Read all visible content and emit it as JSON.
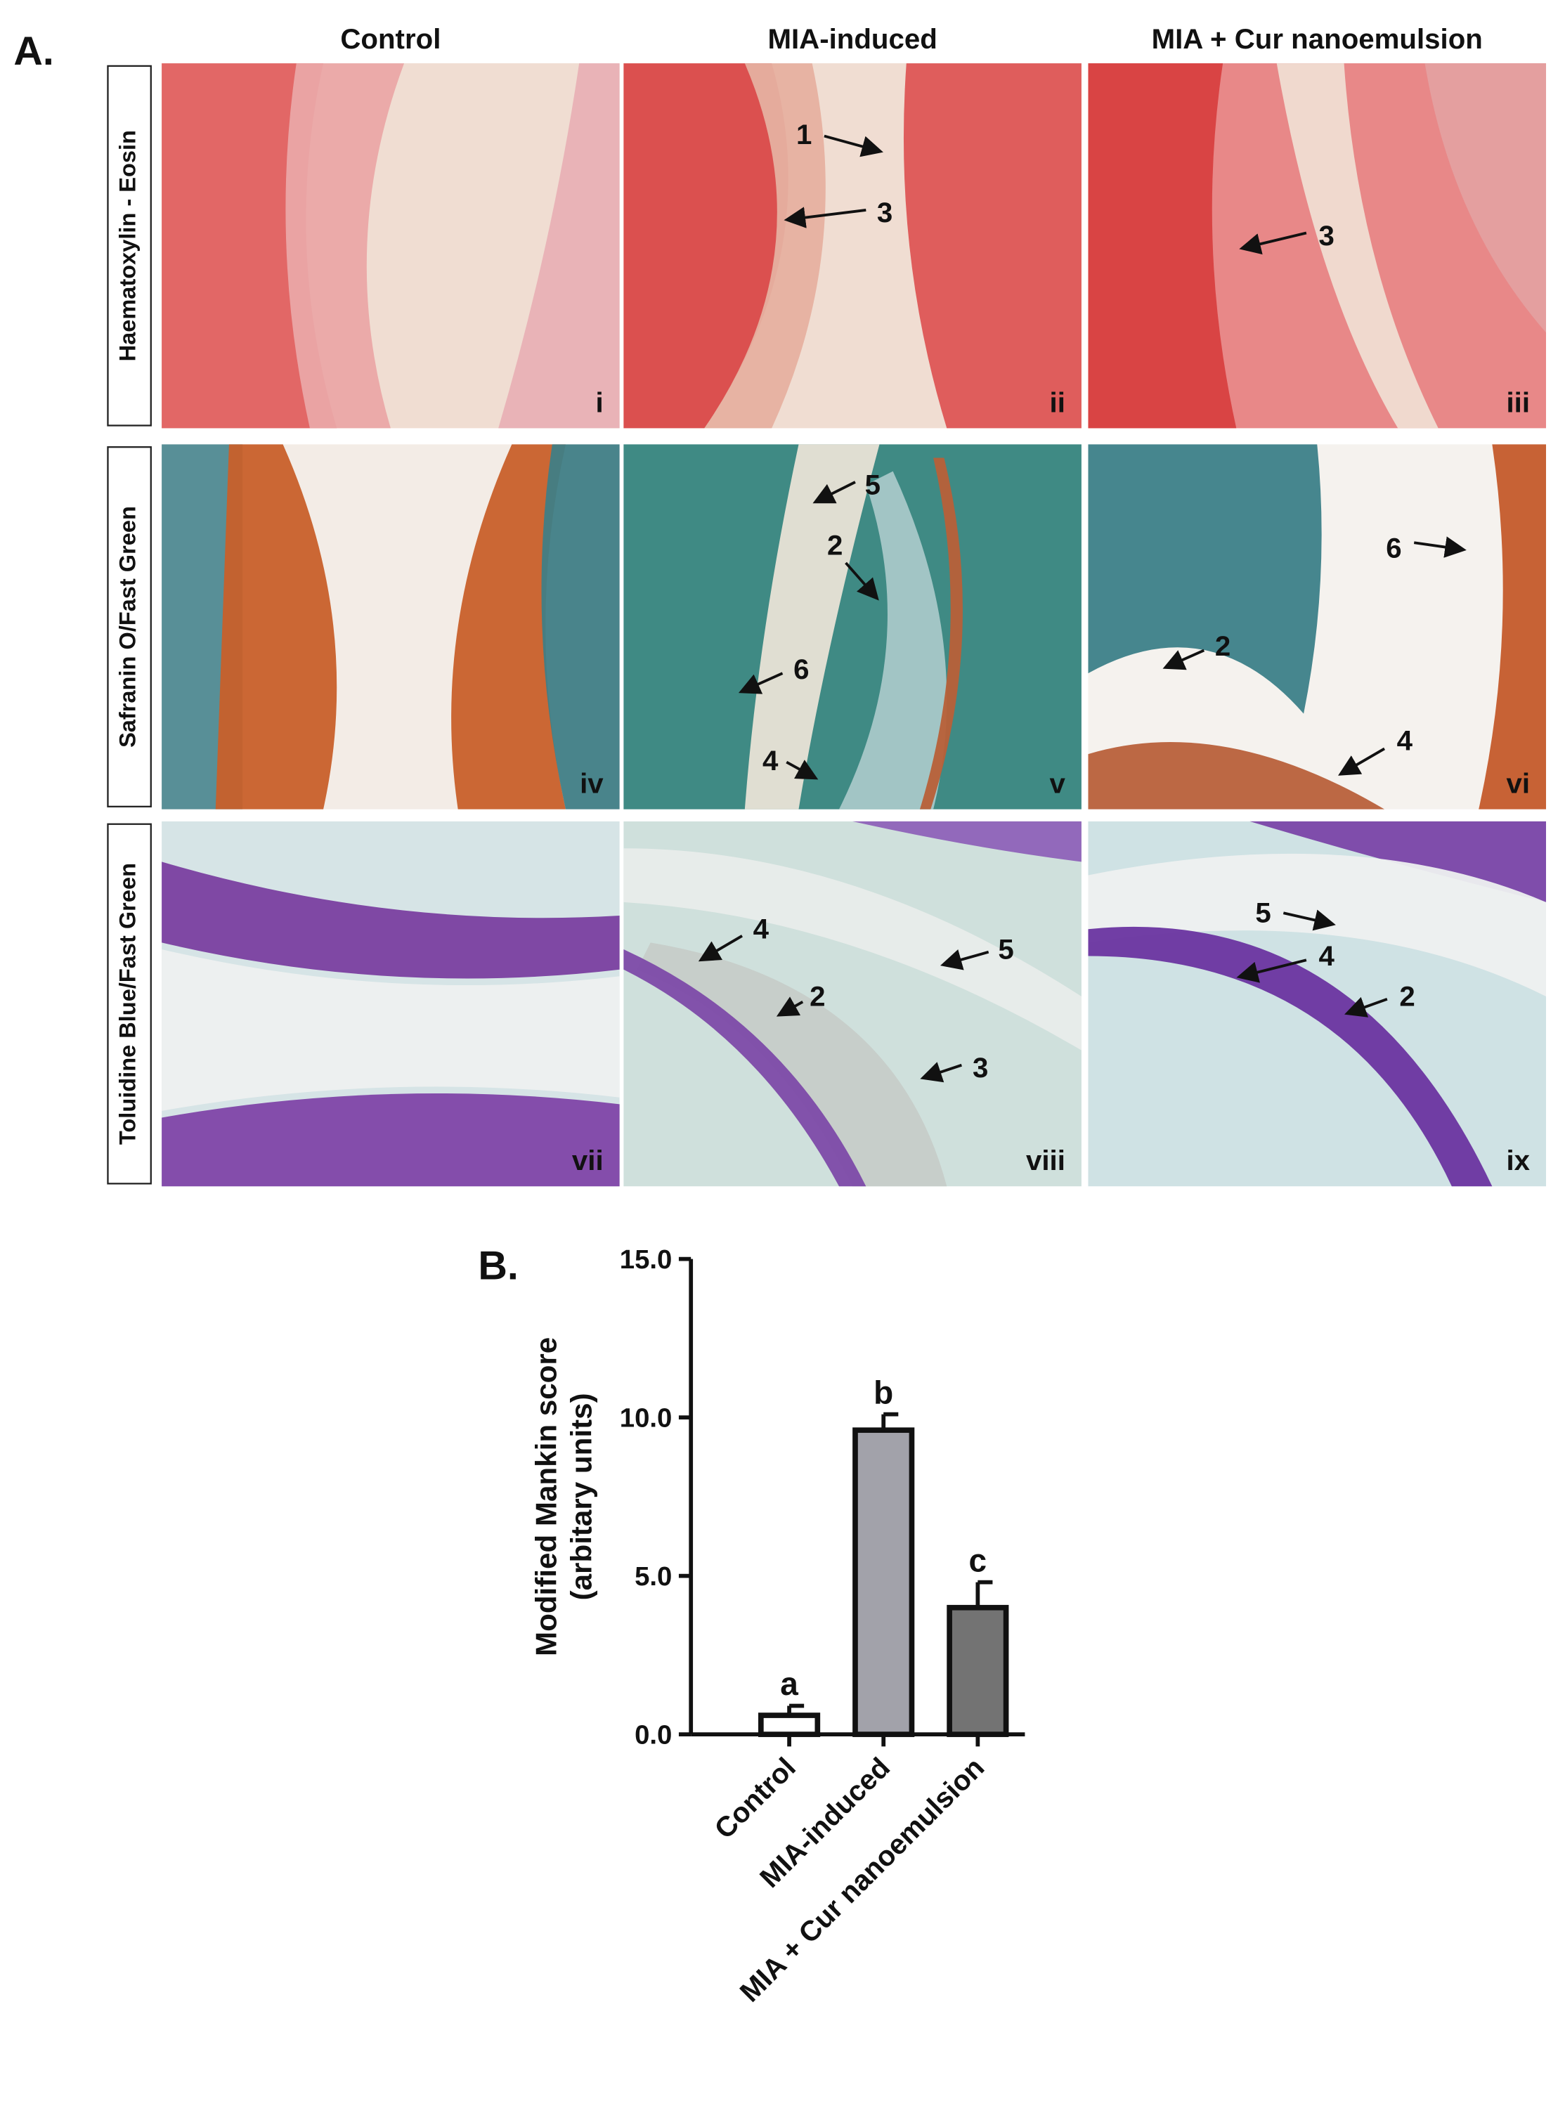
{
  "panel_a": {
    "label": "A.",
    "columns": [
      "Control",
      "MIA-induced",
      "MIA + Cur nanoemulsion"
    ],
    "rows": [
      "Haematoxylin - Eosin",
      "Safranin O/Fast Green",
      "Toluidine Blue/Fast Green"
    ],
    "panels": [
      {
        "numeral": "i",
        "arrows": []
      },
      {
        "numeral": "ii",
        "arrows": [
          "1",
          "3"
        ]
      },
      {
        "numeral": "iii",
        "arrows": [
          "3"
        ]
      },
      {
        "numeral": "iv",
        "arrows": []
      },
      {
        "numeral": "v",
        "arrows": [
          "5",
          "2",
          "6",
          "4"
        ]
      },
      {
        "numeral": "vi",
        "arrows": [
          "6",
          "2",
          "4"
        ]
      },
      {
        "numeral": "vii",
        "arrows": []
      },
      {
        "numeral": "viii",
        "arrows": [
          "4",
          "2",
          "5",
          "3"
        ]
      },
      {
        "numeral": "ix",
        "arrows": [
          "5",
          "4",
          "2"
        ]
      }
    ]
  },
  "chart_data": {
    "type": "bar",
    "label": "B.",
    "ylabel": [
      "Modified Mankin score",
      "(arbitary units)"
    ],
    "categories": [
      "Control",
      "MIA-induced",
      "MIA + Cur nanoemulsion"
    ],
    "values": [
      0.6,
      9.6,
      4.0
    ],
    "errors": [
      0.3,
      0.5,
      0.8
    ],
    "annotations": [
      "a",
      "b",
      "c"
    ],
    "colors": [
      "#ffffff",
      "#a2a2aa",
      "#737373"
    ],
    "ylim": [
      0,
      15
    ],
    "yticks": [
      {
        "value": 0,
        "label": "0.0"
      },
      {
        "value": 5,
        "label": "5.0"
      },
      {
        "value": 10,
        "label": "10.0"
      },
      {
        "value": 15,
        "label": "15.0"
      }
    ]
  }
}
